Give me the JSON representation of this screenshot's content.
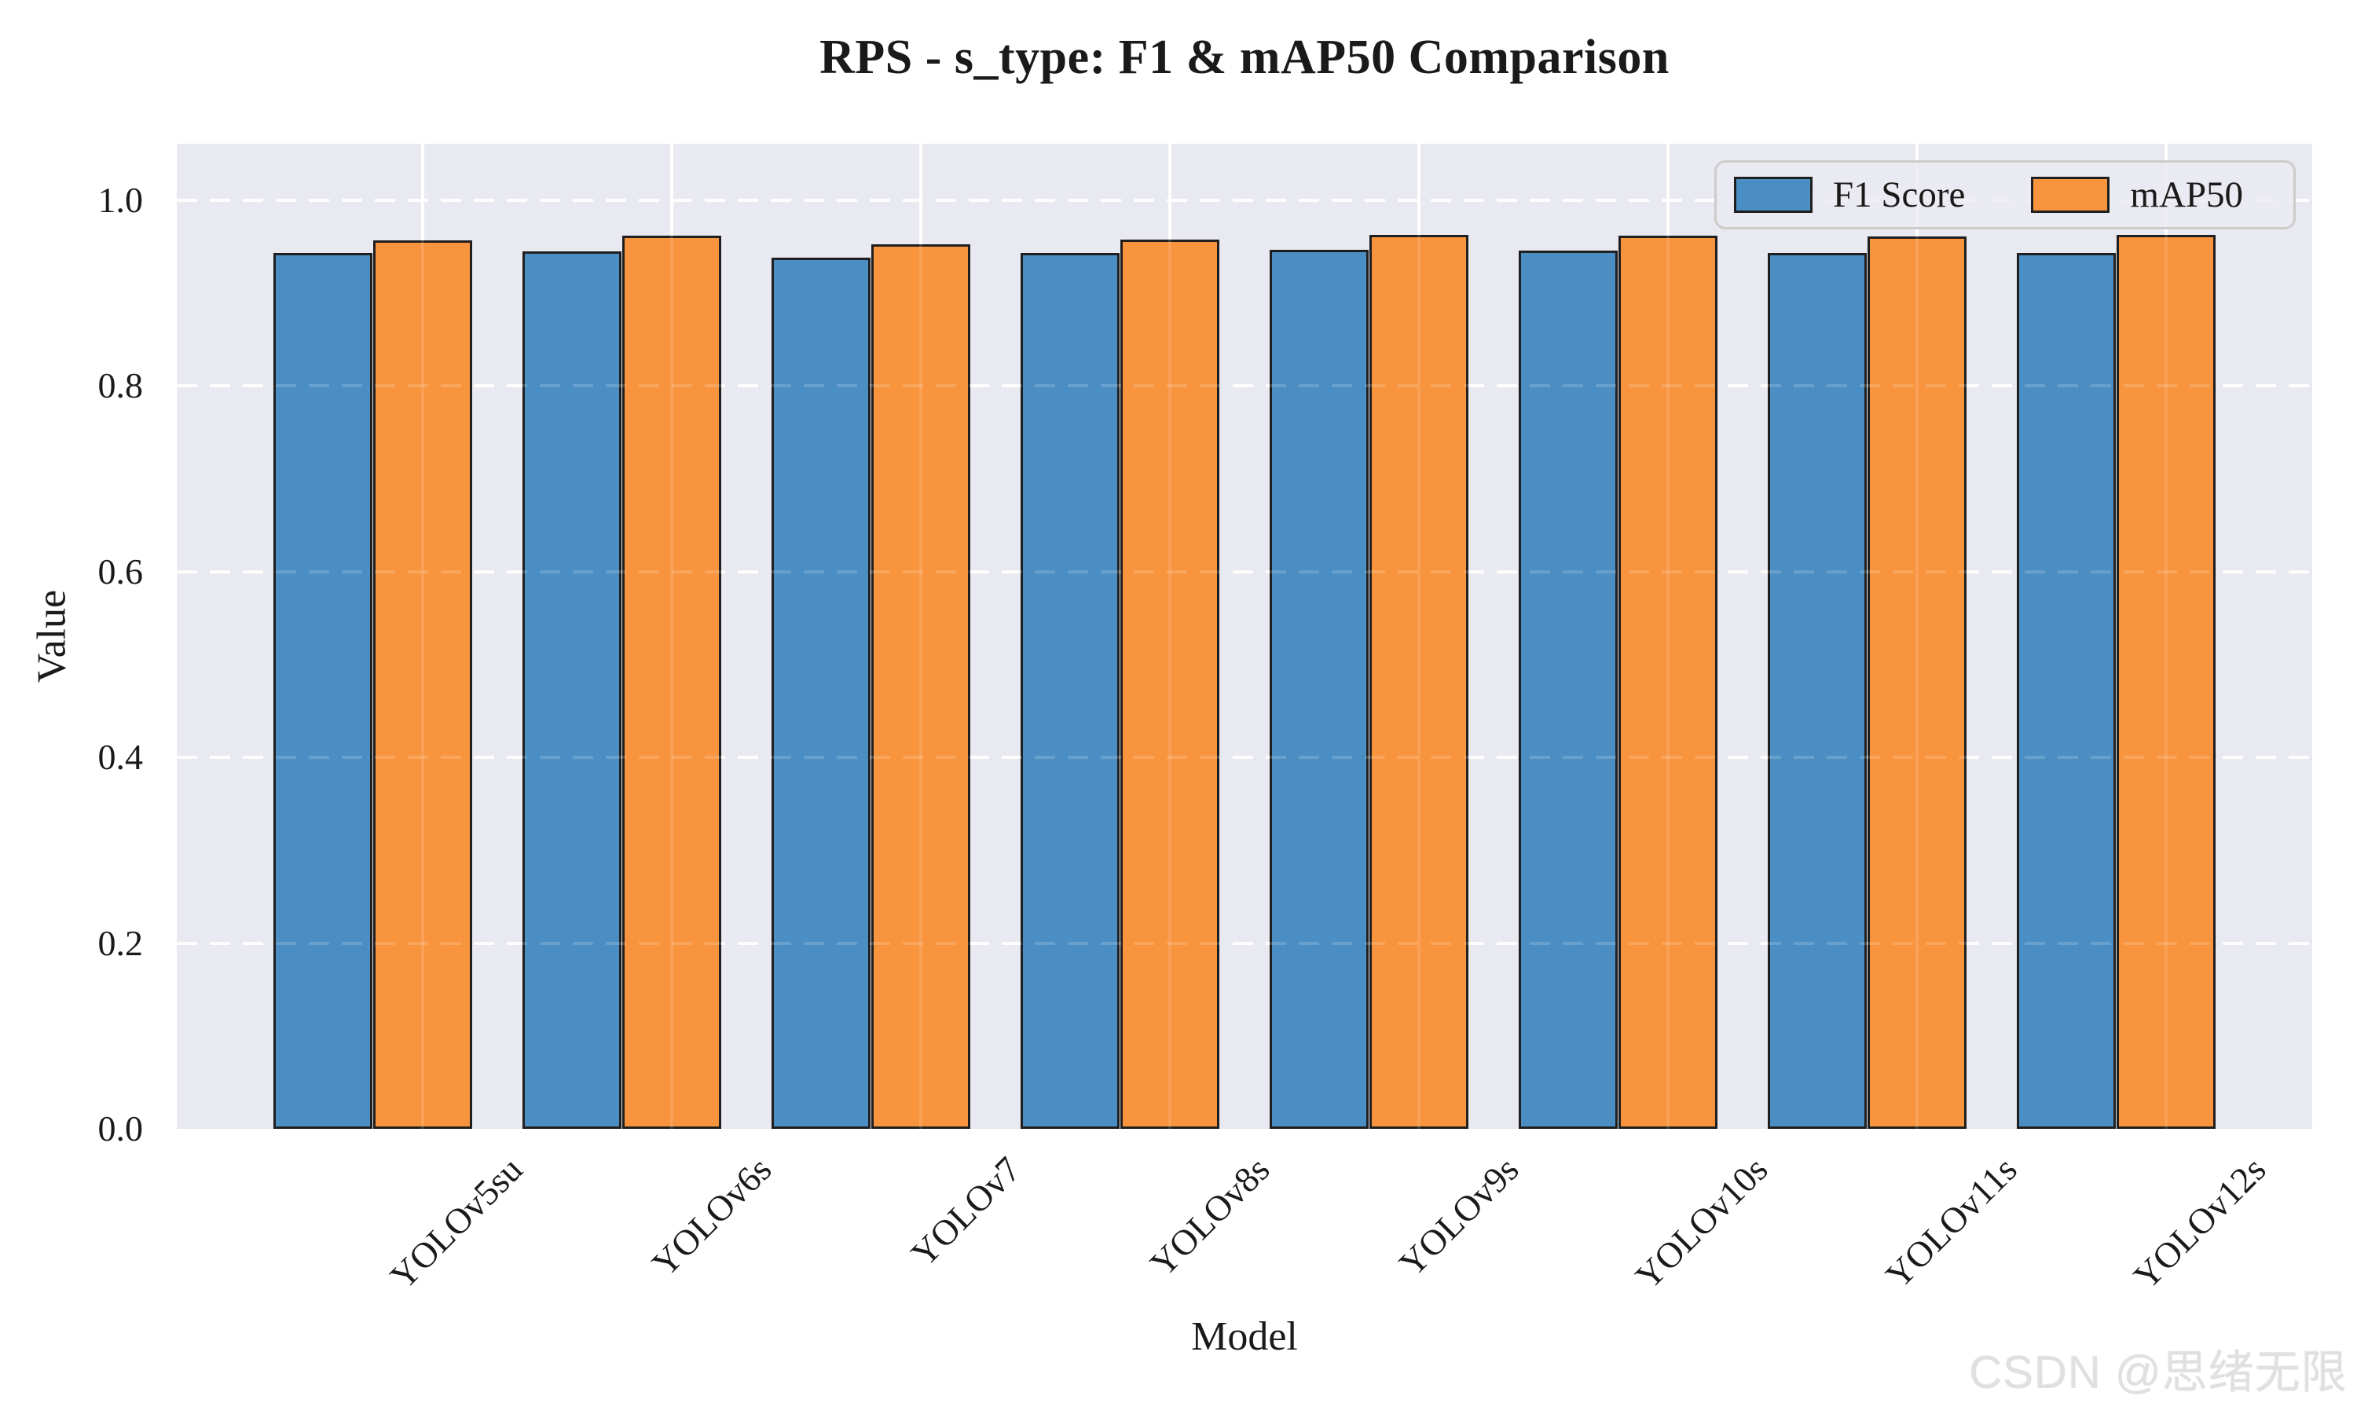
{
  "watermark": "CSDN @思绪无限",
  "chart_data": {
    "type": "bar",
    "title": "RPS - s_type: F1 & mAP50 Comparison",
    "xlabel": "Model",
    "ylabel": "Value",
    "categories": [
      "YOLOv5su",
      "YOLOv6s",
      "YOLOv7",
      "YOLOv8s",
      "YOLOv9s",
      "YOLOv10s",
      "YOLOv11s",
      "YOLOv12s"
    ],
    "series": [
      {
        "name": "F1 Score",
        "color": "#4A8EC3",
        "values": [
          0.943,
          0.945,
          0.938,
          0.943,
          0.947,
          0.946,
          0.943,
          0.943
        ]
      },
      {
        "name": "mAP50",
        "color": "#F8943D",
        "values": [
          0.957,
          0.962,
          0.953,
          0.958,
          0.963,
          0.962,
          0.961,
          0.963
        ]
      }
    ],
    "ylim": [
      0.0,
      1.06
    ],
    "yticks": [
      0.0,
      0.2,
      0.4,
      0.6,
      0.8,
      1.0
    ],
    "ytick_labels": [
      "0.0",
      "0.2",
      "0.4",
      "0.6",
      "0.8",
      "1.0"
    ],
    "grid": true,
    "grid_color": "#ffffff",
    "legend_position": "upper right",
    "plot_background": "#E9E9F1",
    "figure_background": "#ffffff",
    "bar_edge_color": "#1F1F1F"
  }
}
